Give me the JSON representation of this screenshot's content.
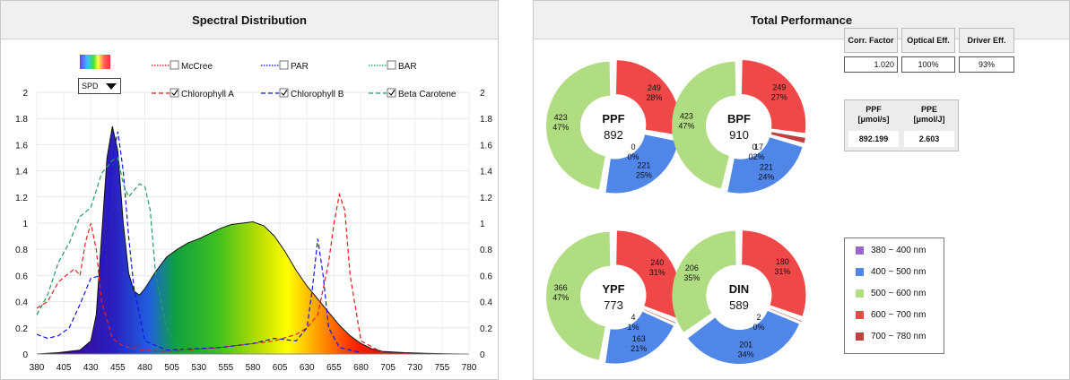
{
  "left_panel": {
    "title": "Spectral Distribution",
    "spd_select": "SPD",
    "legend": [
      {
        "label": "McCree",
        "color": "#e00000",
        "checked": false,
        "style": "dotted"
      },
      {
        "label": "PAR",
        "color": "#0000e0",
        "checked": false,
        "style": "dotted"
      },
      {
        "label": "BAR",
        "color": "#00a050",
        "checked": false,
        "style": "dotted"
      },
      {
        "label": "Chlorophyll A",
        "color": "#e02020",
        "checked": true,
        "style": "dashed"
      },
      {
        "label": "Chlorophyll B",
        "color": "#1010e0",
        "checked": true,
        "style": "dashed"
      },
      {
        "label": "Beta Carotene",
        "color": "#20a060",
        "checked": true,
        "style": "dashed"
      }
    ]
  },
  "chart_data": {
    "type": "area",
    "title": "Spectral Distribution",
    "xlabel": "",
    "ylabel": "",
    "xlim": [
      380,
      780
    ],
    "ylim": [
      0,
      2
    ],
    "x_ticks": [
      "380",
      "405",
      "430",
      "455",
      "480",
      "505",
      "530",
      "555",
      "580",
      "605",
      "630",
      "655",
      "680",
      "705",
      "730",
      "755",
      "780"
    ],
    "y_ticks_left": [
      "0",
      "0.2",
      "0.4",
      "0.6",
      "0.8",
      "1",
      "1.2",
      "1.4",
      "1.6",
      "1.8",
      "2"
    ],
    "y_ticks_right": [
      "0",
      "0.2",
      "0.4",
      "0.6",
      "0.8",
      "1",
      "1.2",
      "1.4",
      "1.6",
      "1.8",
      "2"
    ],
    "grid": true,
    "series": [
      {
        "name": "SPD",
        "x": [
          380,
          400,
          420,
          430,
          435,
          440,
          445,
          450,
          455,
          460,
          465,
          470,
          475,
          480,
          490,
          500,
          510,
          520,
          530,
          540,
          550,
          560,
          570,
          580,
          590,
          600,
          610,
          620,
          630,
          640,
          650,
          660,
          670,
          680,
          690,
          700,
          720,
          740,
          760,
          780
        ],
        "y": [
          0,
          0.01,
          0.03,
          0.1,
          0.3,
          0.9,
          1.5,
          1.74,
          1.55,
          1.0,
          0.62,
          0.48,
          0.45,
          0.5,
          0.63,
          0.74,
          0.8,
          0.85,
          0.88,
          0.92,
          0.96,
          0.99,
          1.0,
          1.01,
          0.98,
          0.9,
          0.78,
          0.64,
          0.52,
          0.42,
          0.32,
          0.22,
          0.14,
          0.08,
          0.04,
          0.02,
          0.01,
          0.005,
          0.002,
          0
        ]
      },
      {
        "name": "Chlorophyll A",
        "x": [
          380,
          390,
          400,
          410,
          415,
          420,
          425,
          430,
          435,
          440,
          450,
          460,
          470,
          480,
          500,
          550,
          600,
          620,
          630,
          640,
          650,
          655,
          660,
          665,
          670,
          680,
          700
        ],
        "y": [
          0.35,
          0.4,
          0.55,
          0.62,
          0.65,
          0.6,
          0.85,
          1.0,
          0.8,
          0.4,
          0.12,
          0.06,
          0.04,
          0.03,
          0.02,
          0.05,
          0.1,
          0.15,
          0.2,
          0.3,
          0.7,
          1.0,
          1.22,
          1.1,
          0.6,
          0.1,
          0.01
        ]
      },
      {
        "name": "Chlorophyll B",
        "x": [
          380,
          390,
          400,
          410,
          420,
          430,
          440,
          445,
          450,
          455,
          460,
          465,
          470,
          480,
          500,
          550,
          580,
          600,
          620,
          630,
          635,
          640,
          645,
          650,
          660,
          680
        ],
        "y": [
          0.15,
          0.12,
          0.14,
          0.2,
          0.38,
          0.58,
          0.6,
          0.9,
          1.5,
          1.7,
          1.4,
          0.9,
          0.5,
          0.1,
          0.03,
          0.05,
          0.08,
          0.12,
          0.1,
          0.2,
          0.5,
          0.88,
          0.6,
          0.2,
          0.05,
          0.01
        ]
      },
      {
        "name": "Beta Carotene",
        "x": [
          380,
          390,
          400,
          410,
          420,
          430,
          440,
          450,
          455,
          460,
          465,
          470,
          475,
          480,
          485,
          490,
          500,
          510,
          520,
          540,
          560
        ],
        "y": [
          0.3,
          0.45,
          0.7,
          0.85,
          1.05,
          1.12,
          1.38,
          1.48,
          1.5,
          1.3,
          1.2,
          1.25,
          1.3,
          1.28,
          1.1,
          0.6,
          0.2,
          0.05,
          0.02,
          0.01,
          0
        ]
      }
    ]
  },
  "right_panel": {
    "title": "Total Performance",
    "donuts": [
      {
        "name": "PPF",
        "total": "892",
        "segments": [
          {
            "value": "423",
            "pct": "47%",
            "frac": 0.474,
            "color": "#b0dc82"
          },
          {
            "value": "249",
            "pct": "28%",
            "frac": 0.279,
            "color": "#f04848"
          },
          {
            "value": "0",
            "pct": "0%",
            "frac": 0.0,
            "color": "#c04040"
          },
          {
            "value": "221",
            "pct": "25%",
            "frac": 0.247,
            "color": "#4f86e8"
          }
        ]
      },
      {
        "name": "BPF",
        "total": "910",
        "segments": [
          {
            "value": "423",
            "pct": "47%",
            "frac": 0.465,
            "color": "#b0dc82"
          },
          {
            "value": "249",
            "pct": "27%",
            "frac": 0.274,
            "color": "#f04848"
          },
          {
            "value": "17",
            "pct": "2%",
            "frac": 0.019,
            "color": "#c04040"
          },
          {
            "value": "221",
            "pct": "24%",
            "frac": 0.242,
            "color": "#4f86e8"
          }
        ],
        "extra_labels": [
          "0",
          "0",
          "2%"
        ]
      },
      {
        "name": "YPF",
        "total": "773",
        "segments": [
          {
            "value": "366",
            "pct": "47%",
            "frac": 0.474,
            "color": "#b0dc82"
          },
          {
            "value": "240",
            "pct": "31%",
            "frac": 0.31,
            "color": "#f04848"
          },
          {
            "value": "4",
            "pct": "1%",
            "frac": 0.005,
            "color": "#c04040"
          },
          {
            "value": "163",
            "pct": "21%",
            "frac": 0.211,
            "color": "#4f86e8"
          }
        ]
      },
      {
        "name": "DIN",
        "total": "589",
        "segments": [
          {
            "value": "206",
            "pct": "35%",
            "frac": 0.35,
            "color": "#b0dc82"
          },
          {
            "value": "180",
            "pct": "31%",
            "frac": 0.306,
            "color": "#f04848"
          },
          {
            "value": "2",
            "pct": "0%",
            "frac": 0.003,
            "color": "#c04040"
          },
          {
            "value": "201",
            "pct": "34%",
            "frac": 0.341,
            "color": "#4f86e8"
          }
        ]
      }
    ],
    "factors": {
      "headers": [
        "Corr. Factor",
        "Optical Eff.",
        "Driver Eff."
      ],
      "values": [
        "1.020",
        "100%",
        "93%"
      ]
    },
    "ppf_table": {
      "headers": [
        "PPF\n[μmol/s]",
        "PPE\n[μmol/J]"
      ],
      "values": [
        "892.199",
        "2.603"
      ]
    },
    "range_legend": [
      {
        "label": "380 ~ 400 nm",
        "color": "#9966cc"
      },
      {
        "label": "400 ~ 500 nm",
        "color": "#4f86e8"
      },
      {
        "label": "500 ~ 600 nm",
        "color": "#b0dc82"
      },
      {
        "label": "600 ~ 700 nm",
        "color": "#f04848"
      },
      {
        "label": "700 ~ 780 nm",
        "color": "#c04040"
      }
    ]
  }
}
